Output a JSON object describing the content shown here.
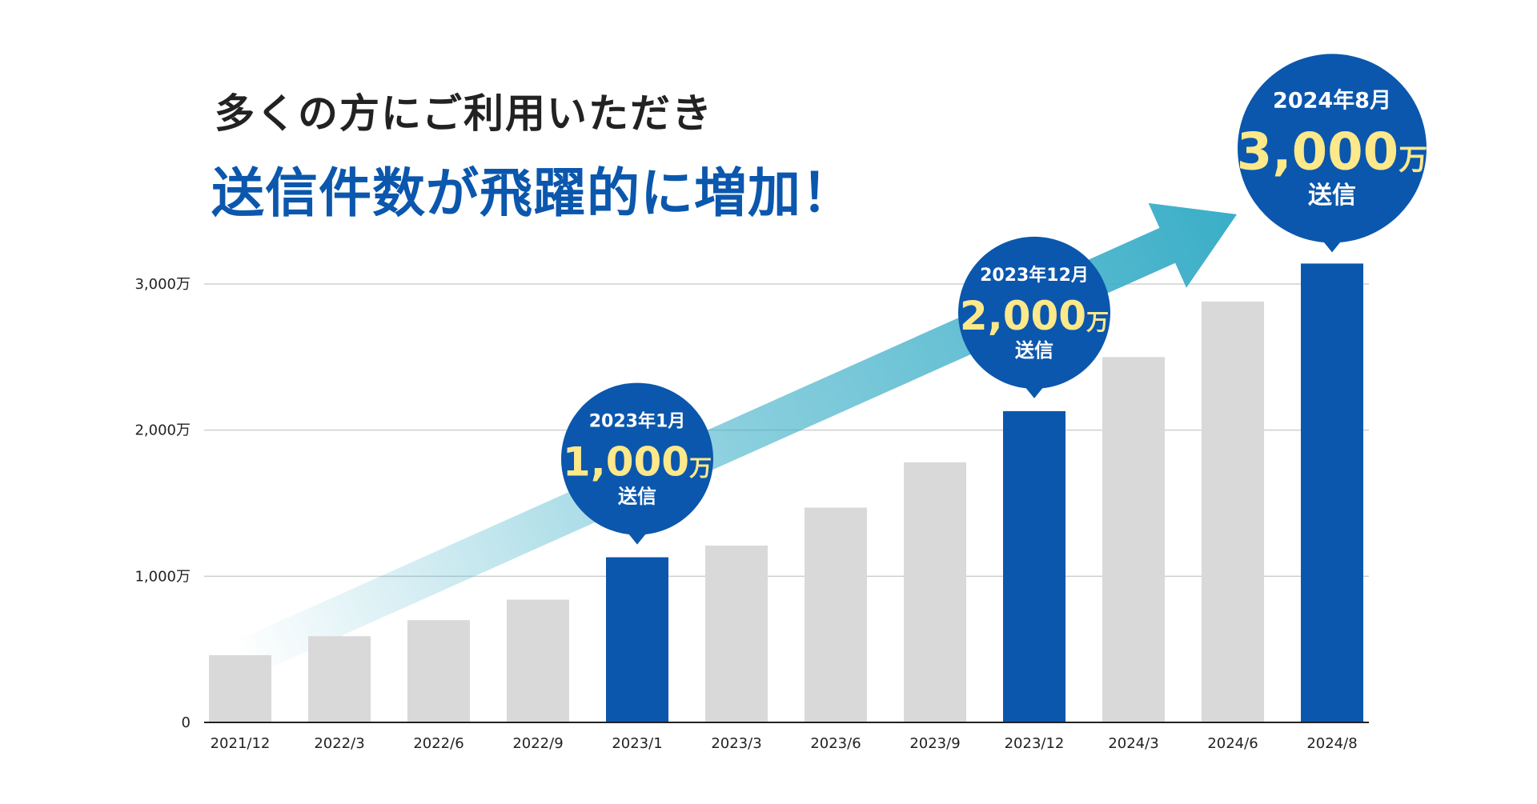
{
  "headline": "多くの方にご利用いただき",
  "subheadline": "送信件数が飛躍的に増加！",
  "colors": {
    "highlight_bar": "#0b57ad",
    "normal_bar": "#d9d9d9",
    "badge": "#0b57ad",
    "badge_value": "#fde88a",
    "arrow": "#3aaec7"
  },
  "chart_data": {
    "type": "bar",
    "categories": [
      "2021/12",
      "2022/3",
      "2022/6",
      "2022/9",
      "2023/1",
      "2023/3",
      "2023/6",
      "2023/9",
      "2023/12",
      "2024/3",
      "2024/6",
      "2024/8"
    ],
    "values": [
      460,
      590,
      700,
      840,
      1130,
      1210,
      1470,
      1780,
      2130,
      2500,
      2880,
      3140
    ],
    "highlighted": [
      4,
      8,
      11
    ],
    "ylim": [
      0,
      3000
    ],
    "yticks": [
      {
        "value": 0,
        "label": "0"
      },
      {
        "value": 1000,
        "label": "1,000万"
      },
      {
        "value": 2000,
        "label": "2,000万"
      },
      {
        "value": 3000,
        "label": "3,000万"
      }
    ],
    "grid": true,
    "trend_arrow": true,
    "annotations": [
      {
        "bar_index": 4,
        "date": "2023年1月",
        "value_number": "1,000",
        "value_unit": "万",
        "sub": "送信",
        "size": "medium"
      },
      {
        "bar_index": 8,
        "date": "2023年12月",
        "value_number": "2,000",
        "value_unit": "万",
        "sub": "送信",
        "size": "medium"
      },
      {
        "bar_index": 11,
        "date": "2024年8月",
        "value_number": "3,000",
        "value_unit": "万",
        "sub": "送信",
        "size": "large"
      }
    ]
  }
}
